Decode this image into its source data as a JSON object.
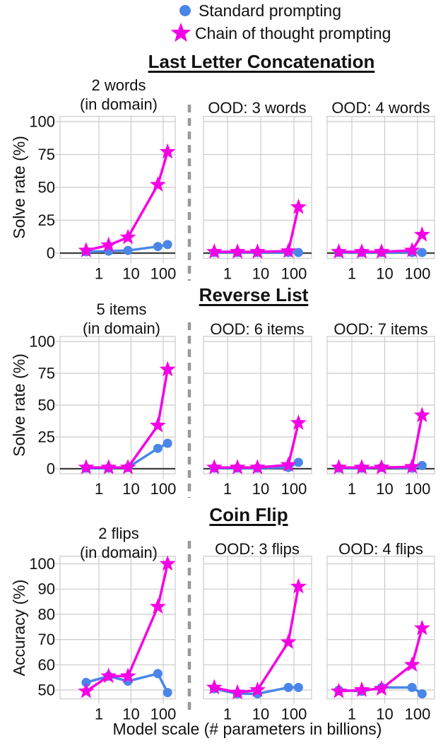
{
  "legend": {
    "items": [
      {
        "label": "Standard prompting",
        "marker": "circle",
        "color": "#4a86e8"
      },
      {
        "label": "Chain of thought prompting",
        "marker": "star",
        "color": "#f400e4"
      }
    ]
  },
  "xlabel": "Model scale (# parameters in billions)",
  "chart_data": {
    "type": "line",
    "x_scale": "log",
    "x": [
      0.4,
      2,
      8,
      68,
      137
    ],
    "x_ticks": [
      1,
      10,
      100
    ],
    "x_tick_labels": [
      "1",
      "10",
      "100"
    ],
    "series_names": [
      "Standard prompting",
      "Chain of thought prompting"
    ],
    "colors": {
      "standard": "#4a86e8",
      "cot": "#f400e4",
      "grid": "#cbcbcb",
      "zero_line": "#3d3d3d",
      "separator": "#999999"
    },
    "sections": [
      {
        "title": "Last Letter Concatenation",
        "ylabel": "Solve rate (%)",
        "yticks": [
          0,
          25,
          50,
          75,
          100
        ],
        "ylim": [
          -4,
          104
        ],
        "plots": [
          {
            "title_lines": [
              "2 words",
              "(in domain)"
            ],
            "standard": [
              1,
              1.5,
              2,
              5,
              6.5
            ],
            "cot": [
              2,
              6,
              12,
              52,
              77
            ]
          },
          {
            "title_lines": [
              "OOD: 3 words"
            ],
            "standard": [
              0.5,
              0.5,
              0.5,
              0.5,
              0.5
            ],
            "cot": [
              1,
              1,
              1,
              1.5,
              35
            ]
          },
          {
            "title_lines": [
              "OOD: 4 words"
            ],
            "standard": [
              0.5,
              0.5,
              0.5,
              0.5,
              0.5
            ],
            "cot": [
              1,
              1,
              1,
              2,
              14
            ]
          }
        ]
      },
      {
        "title": "Reverse List",
        "ylabel": "Solve rate (%)",
        "yticks": [
          0,
          25,
          50,
          75,
          100
        ],
        "ylim": [
          -4,
          104
        ],
        "plots": [
          {
            "title_lines": [
              "5 items",
              "(in domain)"
            ],
            "standard": [
              0.5,
              0.5,
              1,
              16,
              20
            ],
            "cot": [
              1,
              1,
              1,
              34,
              78
            ]
          },
          {
            "title_lines": [
              "OOD: 6 items"
            ],
            "standard": [
              0.5,
              0.5,
              0.5,
              1,
              5
            ],
            "cot": [
              1,
              1,
              1,
              3,
              36
            ]
          },
          {
            "title_lines": [
              "OOD: 7 items"
            ],
            "standard": [
              0.5,
              0.5,
              1,
              0.5,
              2.5
            ],
            "cot": [
              1,
              1,
              1,
              1.5,
              42
            ]
          }
        ]
      },
      {
        "title": "Coin Flip",
        "ylabel": "Accuracy (%)",
        "yticks": [
          50,
          60,
          70,
          80,
          90,
          100
        ],
        "ylim": [
          46.5,
          103
        ],
        "plots": [
          {
            "title_lines": [
              "2 flips",
              "(in domain)"
            ],
            "standard": [
              53,
              55.5,
              53.5,
              56.5,
              49
            ],
            "cot": [
              49.5,
              55.5,
              55.5,
              83,
              100
            ]
          },
          {
            "title_lines": [
              "OOD: 3 flips"
            ],
            "standard": [
              50.5,
              48.5,
              48.5,
              51,
              51
            ],
            "cot": [
              51,
              49,
              50,
              69,
              91
            ]
          },
          {
            "title_lines": [
              "OOD: 4 flips"
            ],
            "standard": [
              50,
              49.5,
              51,
              51,
              48.5
            ],
            "cot": [
              49.5,
              50,
              50.5,
              60,
              74.5
            ]
          }
        ]
      }
    ]
  }
}
